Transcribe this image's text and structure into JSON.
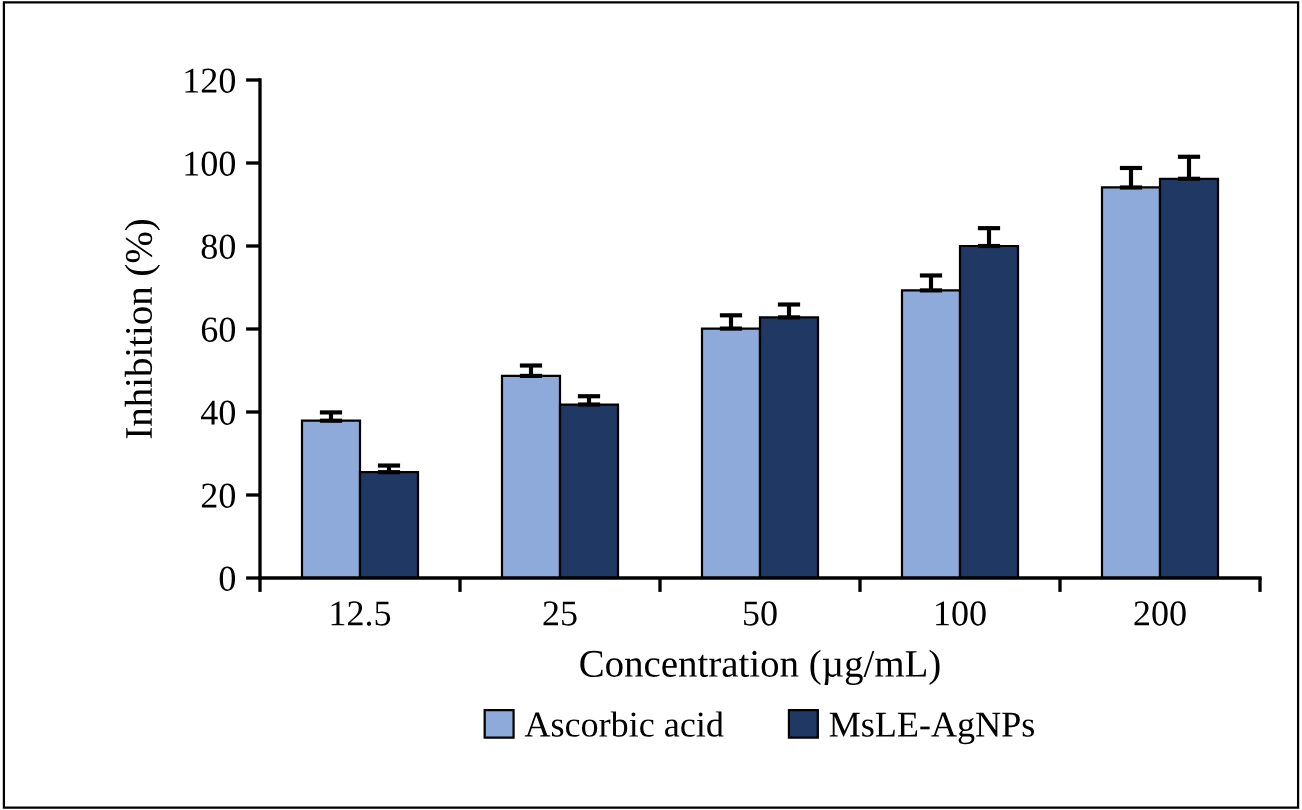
{
  "chart_data": {
    "type": "bar",
    "xlabel": "Concentration (µg/mL)",
    "ylabel": "Inhibition (%)",
    "categories": [
      "12.5",
      "25",
      "50",
      "100",
      "200"
    ],
    "series": [
      {
        "name": "Ascorbic acid",
        "color": "#8eaadb",
        "values": [
          37.9,
          48.7,
          60.1,
          69.3,
          94.1
        ],
        "errors": [
          2,
          2.5,
          3.2,
          3.6,
          4.7
        ]
      },
      {
        "name": "MsLE-AgNPs",
        "color": "#203864",
        "values": [
          25.5,
          41.8,
          62.8,
          80,
          96.2
        ],
        "errors": [
          1.6,
          2,
          3.1,
          4.3,
          5.3
        ]
      }
    ],
    "ylim": [
      0,
      120
    ],
    "yticks": [
      0,
      20,
      40,
      60,
      80,
      100,
      120
    ],
    "grid": false,
    "legend": "bottom"
  }
}
